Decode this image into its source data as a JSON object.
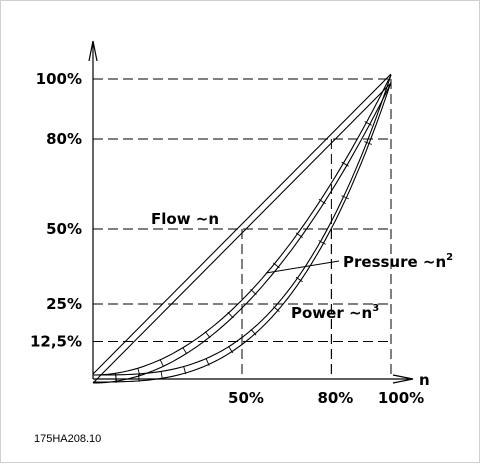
{
  "chart_data": {
    "type": "line",
    "xlabel": "n",
    "xlim": [
      0,
      100
    ],
    "ylim": [
      0,
      100
    ],
    "x_ticks": [
      {
        "value": 50,
        "label": "50%"
      },
      {
        "value": 80,
        "label": "80%"
      },
      {
        "value": 100,
        "label": "100%"
      }
    ],
    "y_ticks": [
      {
        "value": 12.5,
        "label": "12,5%"
      },
      {
        "value": 25,
        "label": "25%"
      },
      {
        "value": 50,
        "label": "50%"
      },
      {
        "value": 80,
        "label": "80%"
      },
      {
        "value": 100,
        "label": "100%"
      }
    ],
    "guides": [
      {
        "x": 50,
        "y": 50
      },
      {
        "x": 80,
        "y": 50
      },
      {
        "x": 80,
        "y": 80
      },
      {
        "x": 100,
        "y": 100
      }
    ],
    "series": [
      {
        "name": "Flow ~n",
        "law": "linear",
        "exponent": 1,
        "x": [
          0,
          50,
          80,
          100
        ],
        "y": [
          0,
          50,
          80,
          100
        ]
      },
      {
        "name": "Pressure ~n²",
        "law": "quadratic",
        "exponent": 2,
        "x": [
          0,
          50,
          80,
          100
        ],
        "y": [
          0,
          25,
          64,
          100
        ]
      },
      {
        "name": "Power ~n³",
        "law": "cubic",
        "exponent": 3,
        "x": [
          0,
          50,
          80,
          100
        ],
        "y": [
          0,
          12.5,
          51.2,
          100
        ]
      }
    ],
    "labels": {
      "flow": "Flow ~n",
      "pressure_text": "Pressure ~n",
      "pressure_sup": "2",
      "power_text": "Power ~n",
      "power_sup": "3"
    }
  },
  "figure_code": "175HA208.10"
}
